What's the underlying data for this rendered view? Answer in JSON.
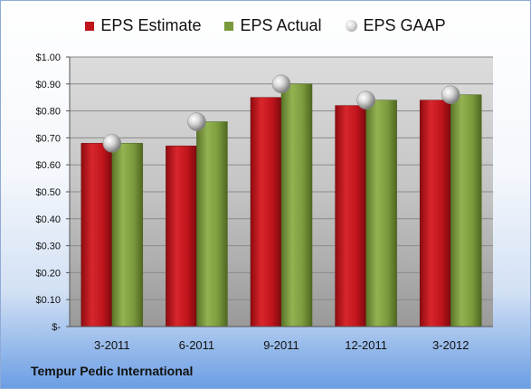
{
  "caption": "Tempur Pedic International",
  "colors": {
    "estimate": "#c0141c",
    "actual": "#7a9a3c",
    "gaap": "#c8c8c8"
  },
  "chart_data": {
    "type": "bar",
    "title": "",
    "xlabel": "",
    "ylabel": "",
    "categories": [
      "3-2011",
      "6-2011",
      "9-2011",
      "12-2011",
      "3-2012"
    ],
    "ylim": [
      0,
      1.0
    ],
    "ytick_labels": [
      "$-",
      "$0.10",
      "$0.20",
      "$0.30",
      "$0.40",
      "$0.50",
      "$0.60",
      "$0.70",
      "$0.80",
      "$0.90",
      "$1.00"
    ],
    "grid": true,
    "legend_placement": "top",
    "series": [
      {
        "name": "EPS Estimate",
        "type": "bar",
        "values": [
          0.68,
          0.67,
          0.85,
          0.82,
          0.84
        ]
      },
      {
        "name": "EPS Actual",
        "type": "bar",
        "values": [
          0.68,
          0.76,
          0.9,
          0.84,
          0.86
        ]
      },
      {
        "name": "EPS GAAP",
        "type": "scatter",
        "values": [
          0.68,
          0.76,
          0.9,
          0.84,
          0.86
        ]
      }
    ]
  }
}
